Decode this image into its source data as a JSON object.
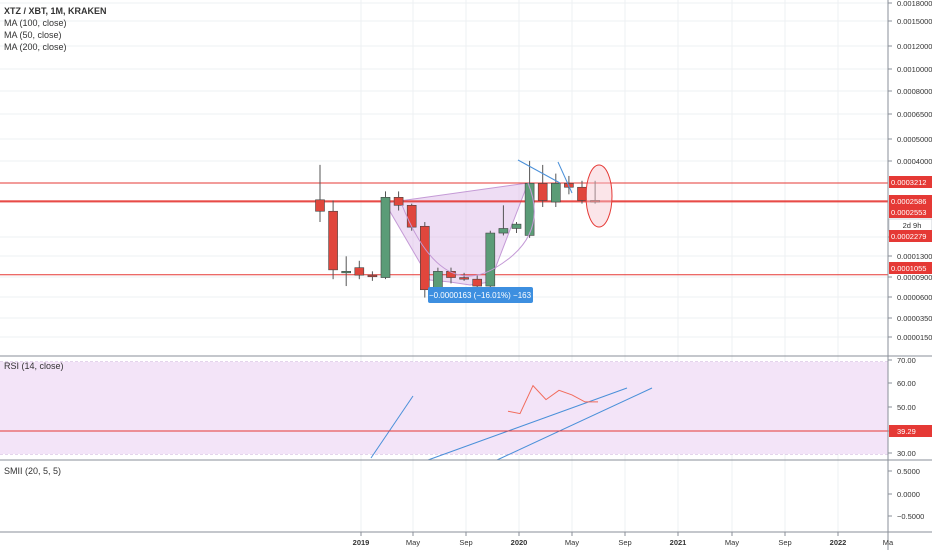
{
  "legend": {
    "symbol": "XTZ / XBT, 1M, KRAKEN",
    "ma_lines": [
      "MA (100, close)",
      "MA (50, close)",
      "MA (200, close)"
    ]
  },
  "main_axis": {
    "tick_labels": [
      "0.0018000",
      "0.0015000",
      "0.0012000",
      "0.0010000",
      "0.0008000",
      "0.0006500",
      "0.0005000",
      "0.0004000",
      "0.0002279",
      "0.0001300",
      "0.0000900",
      "0.0000600",
      "0.0000350",
      "0.0000150"
    ]
  },
  "price_badges": [
    {
      "label": "0.0003212",
      "color": "#e53935"
    },
    {
      "label": "0.0002586",
      "color": "#e53935"
    },
    {
      "label": "0.0002553",
      "color": "#e53935"
    },
    {
      "label": "2d 9h",
      "color": "#ffffff"
    },
    {
      "label": "0.0002279",
      "color": "#e53935"
    },
    {
      "label": "0.0001055",
      "color": "#e53935"
    }
  ],
  "measure_label": "−0.0000163 (−16.01%) −163",
  "rsi": {
    "title": "RSI (14, close)",
    "tick_labels": [
      "70.00",
      "60.00",
      "50.00",
      "40.00",
      "30.00"
    ],
    "badge": "39.29",
    "values": [
      48,
      47,
      59,
      53,
      57,
      55,
      52,
      52
    ]
  },
  "smii": {
    "title": "SMII (20, 5, 5)",
    "tick_labels": [
      "0.5000",
      "0.0000",
      "−0.5000"
    ]
  },
  "time_axis": {
    "tick_labels": [
      "2019",
      "May",
      "Sep",
      "2020",
      "May",
      "Sep",
      "2021",
      "May",
      "Sep",
      "2022",
      "Ma"
    ]
  },
  "colors": {
    "up": "#5b9c77",
    "down": "#e0463c",
    "level": "#e53935",
    "trend": "#4a90d9",
    "rsi_line": "#f26b5b"
  },
  "chart_data": {
    "type": "candlestick",
    "title": "XTZ / XBT, 1M, KRAKEN",
    "scale": "log",
    "horizontal_levels": [
      0.0003212,
      0.0002586,
      0.0002553,
      0.0001055
    ],
    "candles": [
      {
        "o": 0.000262,
        "h": 0.0004,
        "l": 0.0002,
        "c": 0.000228
      },
      {
        "o": 0.000228,
        "h": 0.00026,
        "l": 0.0001,
        "c": 0.000112
      },
      {
        "o": 0.00011,
        "h": 0.000132,
        "l": 9.2e-05,
        "c": 0.00011
      },
      {
        "o": 0.000115,
        "h": 0.000125,
        "l": 0.0001,
        "c": 0.000105
      },
      {
        "o": 0.000105,
        "h": 0.00011,
        "l": 9.8e-05,
        "c": 0.000103
      },
      {
        "o": 0.000102,
        "h": 0.00029,
        "l": 0.0001,
        "c": 0.00027
      },
      {
        "o": 0.00027,
        "h": 0.00029,
        "l": 0.00023,
        "c": 0.000245
      },
      {
        "o": 0.000245,
        "h": 0.00025,
        "l": 0.00018,
        "c": 0.000188
      },
      {
        "o": 0.00019,
        "h": 0.0002,
        "l": 8e-05,
        "c": 8.8e-05
      },
      {
        "o": 8.8e-05,
        "h": 0.000115,
        "l": 8.2e-05,
        "c": 0.00011
      },
      {
        "o": 0.00011,
        "h": 0.000115,
        "l": 9.5e-05,
        "c": 0.000102
      },
      {
        "o": 0.000102,
        "h": 0.000108,
        "l": 9.8e-05,
        "c": 0.0001
      },
      {
        "o": 0.0001,
        "h": 0.000105,
        "l": 8.5e-05,
        "c": 9.2e-05
      },
      {
        "o": 9.2e-05,
        "h": 0.00018,
        "l": 9e-05,
        "c": 0.000175
      },
      {
        "o": 0.000175,
        "h": 0.000245,
        "l": 0.00017,
        "c": 0.000185
      },
      {
        "o": 0.000185,
        "h": 0.0002,
        "l": 0.000175,
        "c": 0.000195
      },
      {
        "o": 0.00017,
        "h": 0.00042,
        "l": 0.000165,
        "c": 0.00032
      },
      {
        "o": 0.00032,
        "h": 0.0004,
        "l": 0.00024,
        "c": 0.00026
      },
      {
        "o": 0.000255,
        "h": 0.00036,
        "l": 0.00024,
        "c": 0.00032
      },
      {
        "o": 0.00032,
        "h": 0.00035,
        "l": 0.00028,
        "c": 0.000305
      },
      {
        "o": 0.000305,
        "h": 0.00033,
        "l": 0.00025,
        "c": 0.00026
      },
      {
        "o": 0.00026,
        "h": 0.00033,
        "l": 0.00025,
        "c": 0.000255
      }
    ]
  }
}
